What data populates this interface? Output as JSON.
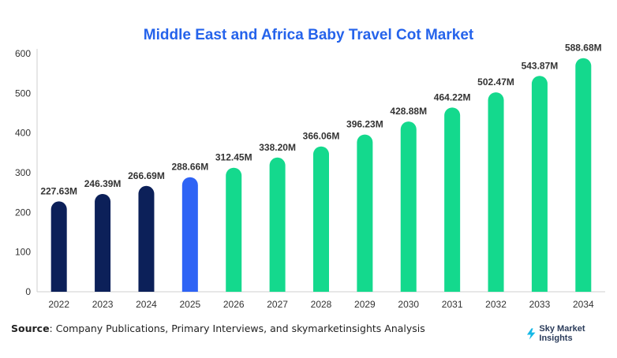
{
  "title": "Middle East and Africa Baby Travel Cot Market",
  "chart_data": {
    "type": "bar",
    "title": "Middle East and Africa Baby Travel Cot Market",
    "xlabel": "",
    "ylabel": "",
    "ylim": [
      0,
      600
    ],
    "yticks": [
      0,
      100,
      200,
      300,
      400,
      500,
      600
    ],
    "grid": false,
    "categories": [
      "2022",
      "2023",
      "2024",
      "2025",
      "2026",
      "2027",
      "2028",
      "2029",
      "2030",
      "2031",
      "2032",
      "2033",
      "2034"
    ],
    "values": [
      227.63,
      246.39,
      266.69,
      288.66,
      312.45,
      338.2,
      366.06,
      396.23,
      428.88,
      464.22,
      502.47,
      543.87,
      588.68
    ],
    "data_labels": [
      "227.63M",
      "246.39M",
      "266.69M",
      "288.66M",
      "312.45M",
      "338.20M",
      "366.06M",
      "396.23M",
      "428.88M",
      "464.22M",
      "502.47M",
      "543.87M",
      "588.68M"
    ],
    "bar_colors": [
      "#0c2059",
      "#0c2059",
      "#0c2059",
      "#2e63f5",
      "#14d98d",
      "#14d98d",
      "#14d98d",
      "#14d98d",
      "#14d98d",
      "#14d98d",
      "#14d98d",
      "#14d98d",
      "#14d98d"
    ]
  },
  "footer": {
    "source_label": "Source",
    "source_text": ": Company Publications, Primary Interviews, and skymarketinsights Analysis",
    "brand_name": "Sky Market Insights",
    "brand_icon": "lightning-bolt-icon",
    "brand_color": "#14b8e6"
  }
}
